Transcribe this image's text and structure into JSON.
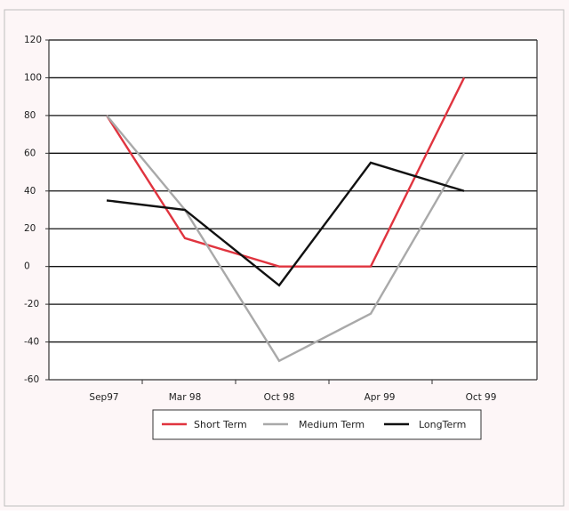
{
  "chart_data": {
    "type": "line",
    "title": "",
    "xlabel": "",
    "ylabel": "",
    "categories": [
      "Sep97",
      "Mar 98",
      "Oct 98",
      "Apr 99",
      "Oct 99"
    ],
    "ylim": [
      -60,
      120
    ],
    "yticks": [
      120,
      100,
      80,
      60,
      40,
      20,
      0,
      -20,
      -40,
      -60
    ],
    "ytick_labels": [
      "120",
      "100",
      "80",
      "60",
      "40",
      "20",
      "0",
      "-20",
      "-40",
      "-60"
    ],
    "grid": "horizontal",
    "legend_position": "bottom",
    "series": [
      {
        "name": "Short Term",
        "color": "#e0343f",
        "values": [
          80,
          15,
          0,
          0,
          100
        ]
      },
      {
        "name": "Medium Term",
        "color": "#a9a9a9",
        "values": [
          80,
          30,
          -50,
          -25,
          60
        ]
      },
      {
        "name": "LongTerm",
        "color": "#111111",
        "values": [
          35,
          30,
          -10,
          55,
          40
        ]
      }
    ]
  },
  "colors": {
    "page_background": "#fdf6f7",
    "plot_background": "#ffffff",
    "grid": "#111111",
    "frame": "#333333"
  }
}
